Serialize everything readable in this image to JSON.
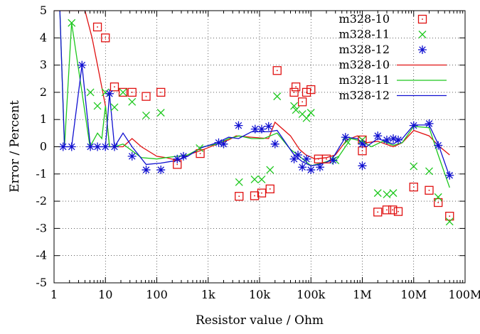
{
  "chart_data": {
    "type": "scatter",
    "title": "",
    "xlabel": "Resistor value / Ohm",
    "ylabel": "Error / Percent",
    "xscale": "log",
    "xlim": [
      1,
      100000000
    ],
    "ylim": [
      -5,
      5
    ],
    "grid": "dotted",
    "legend_position": "top-right",
    "x_ticks": [
      {
        "value": 1,
        "label": "1"
      },
      {
        "value": 10,
        "label": "10"
      },
      {
        "value": 100,
        "label": "100"
      },
      {
        "value": 1000,
        "label": "1k"
      },
      {
        "value": 10000,
        "label": "10k"
      },
      {
        "value": 100000,
        "label": "100k"
      },
      {
        "value": 1000000,
        "label": "1M"
      },
      {
        "value": 10000000,
        "label": "10M"
      },
      {
        "value": 100000000,
        "label": "100M"
      }
    ],
    "y_ticks": [
      {
        "value": -5,
        "label": "-5"
      },
      {
        "value": -4,
        "label": "-4"
      },
      {
        "value": -3,
        "label": "-3"
      },
      {
        "value": -2,
        "label": "-2"
      },
      {
        "value": -1,
        "label": "-1"
      },
      {
        "value": 0,
        "label": "0"
      },
      {
        "value": 1,
        "label": "1"
      },
      {
        "value": 2,
        "label": "2"
      },
      {
        "value": 3,
        "label": "3"
      },
      {
        "value": 4,
        "label": "4"
      },
      {
        "value": 5,
        "label": "5"
      }
    ],
    "series": [
      {
        "name": "m328-10",
        "kind": "points",
        "marker": "square",
        "color": "#e01010",
        "points": [
          [
            7,
            4.4
          ],
          [
            10,
            4
          ],
          [
            15,
            2.2
          ],
          [
            22,
            2
          ],
          [
            33,
            2
          ],
          [
            62,
            1.85
          ],
          [
            120,
            2
          ],
          [
            250,
            -0.65
          ],
          [
            700,
            -0.25
          ],
          [
            4000,
            -1.82
          ],
          [
            8000,
            -1.8
          ],
          [
            11000,
            -1.7
          ],
          [
            16000,
            -1.55
          ],
          [
            22000,
            2.8
          ],
          [
            47000,
            2
          ],
          [
            51000,
            2.2
          ],
          [
            68000,
            1.65
          ],
          [
            82000,
            2
          ],
          [
            100000,
            2.1
          ],
          [
            140000,
            -0.45
          ],
          [
            200000,
            -0.45
          ],
          [
            1000000,
            0.25
          ],
          [
            1000000,
            -0.15
          ],
          [
            10000000,
            -1.48
          ],
          [
            2000000,
            -2.4
          ],
          [
            3000000,
            -2.32
          ],
          [
            3900000,
            -2.32
          ],
          [
            5000000,
            -2.38
          ],
          [
            20000000,
            -1.6
          ],
          [
            30000000,
            -2.05
          ],
          [
            50000000,
            -2.55
          ]
        ]
      },
      {
        "name": "m328-11",
        "kind": "points",
        "marker": "x",
        "color": "#1ec81e",
        "points": [
          [
            2.2,
            4.55
          ],
          [
            5.1,
            2
          ],
          [
            7,
            1.5
          ],
          [
            10,
            2
          ],
          [
            15,
            1.45
          ],
          [
            22,
            2
          ],
          [
            33,
            1.65
          ],
          [
            62,
            1.15
          ],
          [
            120,
            1.25
          ],
          [
            680,
            -0.05
          ],
          [
            4000,
            -1.3
          ],
          [
            8000,
            -1.2
          ],
          [
            11000,
            -1.2
          ],
          [
            16000,
            -0.85
          ],
          [
            22000,
            1.85
          ],
          [
            47000,
            1.5
          ],
          [
            51000,
            1.35
          ],
          [
            68000,
            1.2
          ],
          [
            82000,
            1.05
          ],
          [
            100000,
            1.25
          ],
          [
            300000,
            -0.5
          ],
          [
            500000,
            0.2
          ],
          [
            1000000,
            0.25
          ],
          [
            2000000,
            -1.7
          ],
          [
            3000000,
            -1.75
          ],
          [
            4000000,
            -1.7
          ],
          [
            10000000,
            -0.72
          ],
          [
            20000000,
            -0.9
          ],
          [
            30000000,
            -1.85
          ],
          [
            50000000,
            -2.75
          ]
        ]
      },
      {
        "name": "m328-12",
        "kind": "points",
        "marker": "star",
        "color": "#1010d0",
        "points": [
          [
            1.5,
            0
          ],
          [
            2.2,
            0
          ],
          [
            3.5,
            3
          ],
          [
            5.1,
            0
          ],
          [
            7,
            0
          ],
          [
            10,
            0
          ],
          [
            12,
            1.95
          ],
          [
            15,
            0
          ],
          [
            33,
            -0.35
          ],
          [
            62,
            -0.85
          ],
          [
            120,
            -0.85
          ],
          [
            250,
            -0.45
          ],
          [
            330,
            -0.35
          ],
          [
            1600,
            0.15
          ],
          [
            2000,
            0.1
          ],
          [
            3900,
            0.78
          ],
          [
            8200,
            0.65
          ],
          [
            11000,
            0.65
          ],
          [
            15000,
            0.75
          ],
          [
            20000,
            0.1
          ],
          [
            47000,
            -0.45
          ],
          [
            56000,
            -0.3
          ],
          [
            68000,
            -0.75
          ],
          [
            82000,
            -0.45
          ],
          [
            100000,
            -0.85
          ],
          [
            150000,
            -0.75
          ],
          [
            270000,
            -0.5
          ],
          [
            470000,
            0.35
          ],
          [
            1000000,
            -0.7
          ],
          [
            1000000,
            0.1
          ],
          [
            2000000,
            0.4
          ],
          [
            3000000,
            0.25
          ],
          [
            4000000,
            0.3
          ],
          [
            5000000,
            0.25
          ],
          [
            10000000,
            0.78
          ],
          [
            20000000,
            0.85
          ],
          [
            30000000,
            0.05
          ],
          [
            50000000,
            -1.05
          ]
        ]
      },
      {
        "name": "m328-10",
        "kind": "line",
        "color": "#e01010",
        "points": [
          [
            1,
            5
          ],
          [
            2,
            5
          ],
          [
            4,
            5
          ],
          [
            5.5,
            4
          ],
          [
            7,
            3
          ],
          [
            10,
            1.5
          ],
          [
            12,
            0
          ],
          [
            15,
            0
          ],
          [
            22,
            0
          ],
          [
            33,
            0.3
          ],
          [
            50,
            0
          ],
          [
            100,
            -0.35
          ],
          [
            150,
            -0.4
          ],
          [
            250,
            -0.5
          ],
          [
            400,
            -0.3
          ],
          [
            700,
            -0.15
          ],
          [
            1500,
            0.1
          ],
          [
            2500,
            0.25
          ],
          [
            3500,
            0.4
          ],
          [
            7000,
            0.35
          ],
          [
            15000,
            0.3
          ],
          [
            20000,
            0.9
          ],
          [
            40000,
            0.4
          ],
          [
            60000,
            -0.1
          ],
          [
            80000,
            -0.3
          ],
          [
            120000,
            -0.45
          ],
          [
            200000,
            -0.4
          ],
          [
            300000,
            -0.3
          ],
          [
            500000,
            0.25
          ],
          [
            800000,
            0.4
          ],
          [
            1200000,
            0.15
          ],
          [
            2000000,
            0.2
          ],
          [
            4000000,
            0
          ],
          [
            6000000,
            0.15
          ],
          [
            10000000,
            0.6
          ],
          [
            20000000,
            0.4
          ],
          [
            30000000,
            0.05
          ],
          [
            50000000,
            -0.3
          ]
        ]
      },
      {
        "name": "m328-11",
        "kind": "line",
        "color": "#1ec81e",
        "points": [
          [
            1.3,
            5
          ],
          [
            1.6,
            0
          ],
          [
            2.2,
            4.55
          ],
          [
            3.5,
            2
          ],
          [
            5,
            0
          ],
          [
            7,
            0.5
          ],
          [
            8.5,
            0.3
          ],
          [
            10,
            1.5
          ],
          [
            12,
            0
          ],
          [
            15,
            0
          ],
          [
            22,
            0.1
          ],
          [
            33,
            -0.15
          ],
          [
            50,
            -0.4
          ],
          [
            100,
            -0.45
          ],
          [
            150,
            -0.4
          ],
          [
            250,
            -0.35
          ],
          [
            400,
            -0.3
          ],
          [
            800,
            0
          ],
          [
            1500,
            0.1
          ],
          [
            2500,
            0.3
          ],
          [
            4000,
            0.4
          ],
          [
            7000,
            0.3
          ],
          [
            12000,
            0.3
          ],
          [
            22000,
            0.5
          ],
          [
            40000,
            -0.1
          ],
          [
            60000,
            -0.35
          ],
          [
            100000,
            -0.7
          ],
          [
            200000,
            -0.55
          ],
          [
            350000,
            -0.35
          ],
          [
            600000,
            0.3
          ],
          [
            1000000,
            0.2
          ],
          [
            1500000,
            0
          ],
          [
            2500000,
            0.2
          ],
          [
            4000000,
            0.05
          ],
          [
            6000000,
            0.15
          ],
          [
            10000000,
            0.75
          ],
          [
            20000000,
            0.7
          ],
          [
            30000000,
            -0.3
          ],
          [
            50000000,
            -1.5
          ]
        ]
      },
      {
        "name": "m328-12",
        "kind": "line",
        "color": "#1010d0",
        "points": [
          [
            1.3,
            5
          ],
          [
            1.6,
            0
          ],
          [
            2.2,
            0
          ],
          [
            3.5,
            3
          ],
          [
            5.1,
            0
          ],
          [
            7,
            0
          ],
          [
            10,
            0
          ],
          [
            12,
            1.95
          ],
          [
            15,
            0
          ],
          [
            22,
            0.5
          ],
          [
            33,
            0
          ],
          [
            62,
            -0.65
          ],
          [
            120,
            -0.6
          ],
          [
            250,
            -0.5
          ],
          [
            400,
            -0.35
          ],
          [
            700,
            -0.05
          ],
          [
            1500,
            0.15
          ],
          [
            2500,
            0.35
          ],
          [
            3900,
            0.3
          ],
          [
            7000,
            0.55
          ],
          [
            15000,
            0.55
          ],
          [
            22000,
            0.6
          ],
          [
            47000,
            -0.3
          ],
          [
            68000,
            -0.55
          ],
          [
            100000,
            -0.7
          ],
          [
            150000,
            -0.65
          ],
          [
            250000,
            -0.5
          ],
          [
            470000,
            0.35
          ],
          [
            800000,
            0.3
          ],
          [
            1200000,
            0
          ],
          [
            2000000,
            0.3
          ],
          [
            4000000,
            0.1
          ],
          [
            6000000,
            0.3
          ],
          [
            10000000,
            0.8
          ],
          [
            20000000,
            0.8
          ],
          [
            30000000,
            0.1
          ],
          [
            50000000,
            -1.1
          ]
        ]
      }
    ]
  }
}
